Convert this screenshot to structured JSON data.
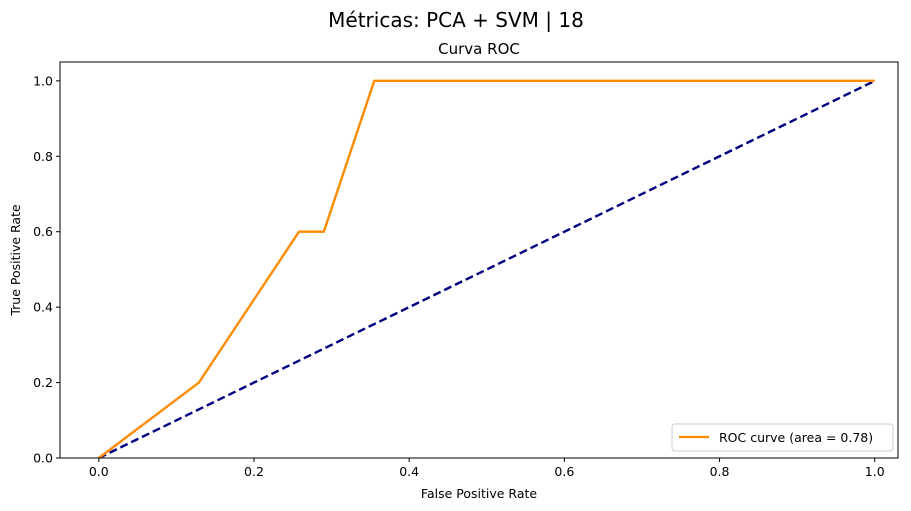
{
  "figure": {
    "suptitle": "Métricas: PCA + SVM | 18"
  },
  "chart_data": {
    "type": "line",
    "title": "Curva ROC",
    "xlabel": "False Positive Rate",
    "ylabel": "True Positive Rate",
    "xlim": [
      -0.05,
      1.03
    ],
    "ylim": [
      0.0,
      1.05
    ],
    "xticks": [
      0.0,
      0.2,
      0.4,
      0.6,
      0.8,
      1.0
    ],
    "xtick_labels": [
      "0.0",
      "0.2",
      "0.4",
      "0.6",
      "0.8",
      "1.0"
    ],
    "yticks": [
      0.0,
      0.2,
      0.4,
      0.6,
      0.8,
      1.0
    ],
    "ytick_labels": [
      "0.0",
      "0.2",
      "0.4",
      "0.6",
      "0.8",
      "1.0"
    ],
    "grid": false,
    "legend_position": "lower-right",
    "series": [
      {
        "name": "ROC curve (area = 0.78)",
        "color": "#ff8c00",
        "style": "solid",
        "x": [
          0.0,
          0.129,
          0.258,
          0.29,
          0.355,
          1.0
        ],
        "y": [
          0.0,
          0.2,
          0.6,
          0.6,
          1.0,
          1.0
        ]
      },
      {
        "color": "#000080",
        "style": "dashed",
        "x": [
          0.0,
          1.0
        ],
        "y": [
          0.0,
          1.0
        ]
      }
    ]
  }
}
